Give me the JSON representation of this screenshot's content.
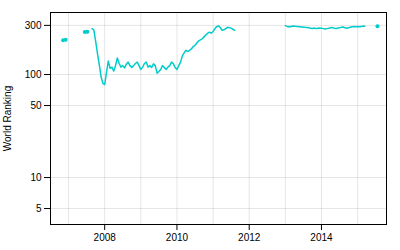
{
  "chart_data": {
    "type": "line",
    "ylabel": "World Ranking",
    "color": "#00cccc",
    "log": "y",
    "grid": true,
    "xlim": [
      2006.5,
      2015.8
    ],
    "xticks": [
      2008,
      2010,
      2012,
      2014
    ],
    "x_minor_ticks": [
      2007,
      2009,
      2011,
      2013,
      2015
    ],
    "ylim": [
      3.5,
      400
    ],
    "yticks": [
      5,
      10,
      50,
      100,
      300
    ],
    "series": [
      {
        "type": "scatter",
        "marker": "circle",
        "x": [
          2006.85,
          2006.92
        ],
        "values": [
          215,
          218
        ]
      },
      {
        "type": "scatter",
        "marker": "circle",
        "x": [
          2007.45,
          2007.52
        ],
        "values": [
          258,
          260
        ]
      },
      {
        "type": "line",
        "x": [
          2007.65,
          2007.7,
          2007.75,
          2007.8,
          2007.85,
          2007.9,
          2007.95,
          2008.0,
          2008.05,
          2008.1,
          2008.15,
          2008.2,
          2008.25,
          2008.3,
          2008.35,
          2008.4,
          2008.45,
          2008.5,
          2008.55,
          2008.6,
          2008.65,
          2008.7,
          2008.75,
          2008.8,
          2008.85,
          2008.9,
          2008.95,
          2009.0,
          2009.05,
          2009.1,
          2009.15,
          2009.2,
          2009.25,
          2009.3,
          2009.35,
          2009.4,
          2009.45,
          2009.5,
          2009.55,
          2009.6,
          2009.65,
          2009.7,
          2009.75,
          2009.8,
          2009.85,
          2009.9,
          2009.95,
          2010.0,
          2010.05,
          2010.1,
          2010.15,
          2010.2,
          2010.25,
          2010.3,
          2010.35,
          2010.4,
          2010.45,
          2010.5,
          2010.55,
          2010.6,
          2010.65,
          2010.7,
          2010.75,
          2010.8,
          2010.85,
          2010.9,
          2010.95,
          2011.0,
          2011.05,
          2011.1,
          2011.15,
          2011.2,
          2011.25,
          2011.3,
          2011.4,
          2011.5,
          2011.6
        ],
        "values": [
          280,
          270,
          210,
          160,
          125,
          95,
          82,
          80,
          105,
          135,
          115,
          118,
          108,
          122,
          145,
          128,
          118,
          122,
          116,
          126,
          132,
          122,
          117,
          122,
          128,
          132,
          122,
          112,
          118,
          128,
          132,
          118,
          122,
          117,
          127,
          122,
          103,
          107,
          112,
          122,
          117,
          112,
          118,
          122,
          132,
          127,
          117,
          112,
          122,
          132,
          152,
          162,
          172,
          167,
          172,
          177,
          187,
          192,
          202,
          212,
          217,
          222,
          232,
          242,
          252,
          257,
          252,
          262,
          278,
          292,
          297,
          286,
          268,
          272,
          287,
          282,
          268
        ]
      },
      {
        "type": "line",
        "x": [
          2013.0,
          2013.03,
          2013.06,
          2013.09,
          2013.12,
          2013.15,
          2013.18,
          2013.21,
          2013.65,
          2013.7,
          2013.75,
          2013.8,
          2013.85,
          2013.9,
          2013.95,
          2014.0,
          2014.05,
          2014.1,
          2014.15,
          2014.2,
          2014.25,
          2014.3,
          2014.35,
          2014.4,
          2014.5,
          2014.55,
          2014.6,
          2014.65,
          2014.7,
          2014.75,
          2014.85,
          2014.9,
          2014.95,
          2015.0,
          2015.05,
          2015.1,
          2015.15,
          2015.2
        ],
        "values": [
          298,
          295,
          293,
          291,
          293,
          291,
          294,
          296,
          284,
          282,
          280,
          283,
          279,
          281,
          283,
          281,
          279,
          277,
          279,
          281,
          284,
          286,
          282,
          280,
          284,
          287,
          289,
          284,
          282,
          284,
          291,
          293,
          291,
          293,
          291,
          293,
          295,
          294
        ]
      },
      {
        "type": "scatter",
        "marker": "circle",
        "x": [
          2015.55
        ],
        "values": [
          294
        ]
      }
    ]
  }
}
